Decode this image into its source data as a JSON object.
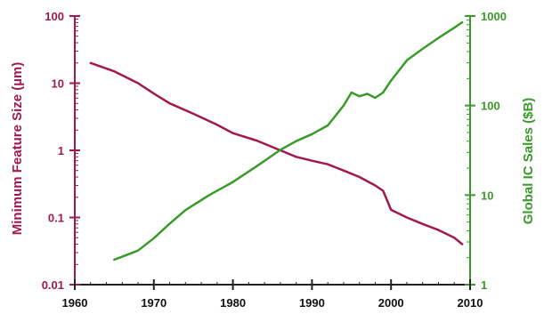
{
  "chart_data": {
    "type": "line",
    "title": "",
    "xlabel": "",
    "xlim": [
      1960,
      2010
    ],
    "x_ticks": [
      "1960",
      "1970",
      "1980",
      "1990",
      "2000",
      "2010"
    ],
    "y_left": {
      "label": "Minimum Feature Size (µm)",
      "scale": "log",
      "ylim": [
        0.01,
        100
      ],
      "ticks": [
        "0.01",
        "0.1",
        "1",
        "10",
        "100"
      ],
      "color": "#a0194f"
    },
    "y_right": {
      "label": "Global IC Sales ($B)",
      "scale": "log",
      "ylim": [
        1,
        1000
      ],
      "ticks": [
        "1",
        "10",
        "100",
        "1000"
      ],
      "color": "#3a9a2a"
    },
    "grid": false,
    "legend": "none",
    "series": [
      {
        "axis": "left",
        "color": "#a0194f",
        "x": [
          1962,
          1965,
          1968,
          1970,
          1972,
          1975,
          1978,
          1980,
          1983,
          1986,
          1988,
          1990,
          1992,
          1994,
          1996,
          1998,
          1999,
          2000,
          2002,
          2004,
          2006,
          2008,
          2009
        ],
        "y": [
          20,
          15,
          10,
          7,
          5,
          3.5,
          2.4,
          1.8,
          1.4,
          1,
          0.8,
          0.7,
          0.62,
          0.5,
          0.4,
          0.3,
          0.25,
          0.13,
          0.1,
          0.08,
          0.065,
          0.05,
          0.04
        ]
      },
      {
        "axis": "right",
        "color": "#3a9a2a",
        "x": [
          1965,
          1968,
          1970,
          1972,
          1974,
          1977,
          1980,
          1983,
          1986,
          1988,
          1990,
          1992,
          1994,
          1995,
          1996,
          1997,
          1998,
          1999,
          2000,
          2002,
          2004,
          2006,
          2008,
          2009
        ],
        "y": [
          1.9,
          2.4,
          3.3,
          4.8,
          6.8,
          10,
          14,
          21,
          32,
          40,
          48,
          60,
          100,
          140,
          127,
          135,
          122,
          140,
          190,
          320,
          430,
          570,
          740,
          850
        ]
      }
    ]
  }
}
